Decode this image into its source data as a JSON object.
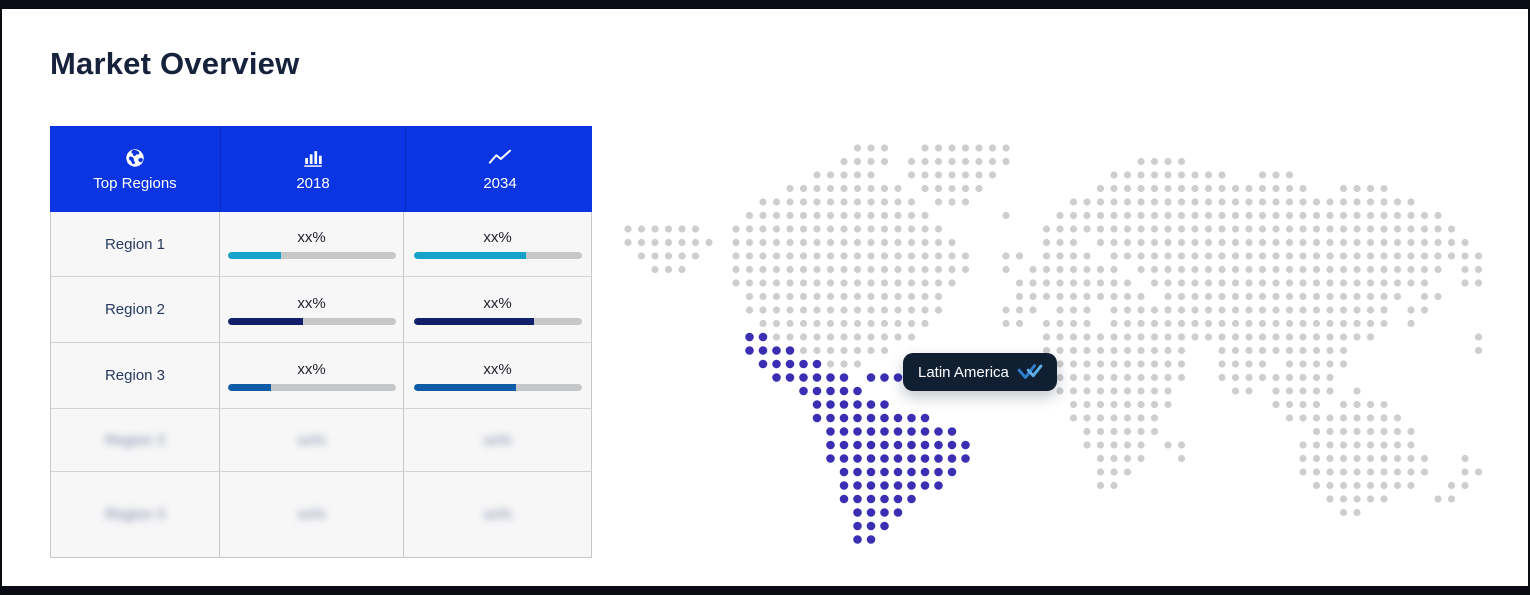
{
  "page": {
    "title": "Market Overview"
  },
  "table": {
    "columns": [
      {
        "label": "Top Regions",
        "icon": "globe-icon"
      },
      {
        "label": "2018",
        "icon": "bar-chart-icon"
      },
      {
        "label": "2034",
        "icon": "trend-up-icon"
      }
    ],
    "rows": [
      {
        "region": "Region 1",
        "blurred": false,
        "v2018": "xx%",
        "v2034": "xx%",
        "pct2018": 32,
        "pct2034": 67,
        "bar_color": "#17a2cb"
      },
      {
        "region": "Region 2",
        "blurred": false,
        "v2018": "xx%",
        "v2034": "xx%",
        "pct2018": 45,
        "pct2034": 72,
        "bar_color": "#121f6b"
      },
      {
        "region": "Region 3",
        "blurred": false,
        "v2018": "xx%",
        "v2034": "xx%",
        "pct2018": 26,
        "pct2034": 61,
        "bar_color": "#0e5ba8"
      },
      {
        "region": "Region 3",
        "blurred": true,
        "v2018": "xx%",
        "v2034": "xx%",
        "pct2018": null,
        "pct2034": null,
        "bar_color": null
      },
      {
        "region": "Region 3",
        "blurred": true,
        "v2018": "xx%",
        "v2034": "xx%",
        "pct2018": null,
        "pct2034": null,
        "bar_color": null
      }
    ],
    "track_color": "#c6c7c9",
    "header_color": "#0b35e2"
  },
  "map": {
    "tooltip_label": "Latin America",
    "dot_color": "#cecece",
    "highlight_color": "#3b2eb3",
    "legend": {
      "empty": ".",
      "dot": "o",
      "highlight": "P"
    },
    "grid": [
      ".................ooo..ooooooo...................................",
      "................oooo.oooooooo.........oooo......................",
      "..............ooooo..ooooooo........ooooooooo..ooo..............",
      "............ooooooooo.ooooo........oooooooooooooooo..oooo.......",
      "..........oooooooooooo.ooo.......oooooooooooooooooooooooooo.....",
      ".........oooooooooooooo.....o...ooooooooooooooooooooooooooooo...",
      "oooooo..oooooooooooooooo.......ooooooooooooooooooooooooooooooo..",
      "ooooooo.ooooooooooooooooo......ooo.oooooooooooooooooooooooooooo.",
      ".ooooo..oooooooooooooooooo..oo.oooo.oooooooooooooooooooooooooooo",
      "..ooo...oooooooooooooooooo..o.ooooooo.ooooooooooooooooooooooo.oo",
      "........ooooooooooooooooo....ooooooooo.ooooooooooooooooooooo..oo",
      ".........ooooooooooooooo.....oooooooooo.oooooooooooooooooo.oo...",
      ".........ooooooooooooooo....ooo.ooo.ooooooooooooooooooooo.oo....",
      "..........ooooooooooooo.....oo.oooo.ooooooooooooooooooooo.o.....",
      ".........PPooooooooooo.........ooooooooooooooooooooooooo.......o",
      ".........PPPPooooooo...........ooooooooooo..oooooooooo.........o",
      "..........PPPPPooo.............ooooooooooo..oooo.ooooo..........",
      "...........PPPPPP.PPP...........oooooooooo..ooooooooo...........",
      ".............PPPPP..............ooooooooo....oo.ooooo.o.........",
      "..............PPPPPP.............oooooooo.......oooo.oooo.......",
      "..............PPPPPPPPP..........ooooooo.........ooooooooo......",
      "...............PPPPPPPPPP.........oooooo...........oooooooo.....",
      "...............PPPPPPPPPPP........ooooo.oo........ooooooooo.....",
      "...............PPPPPPPPPPP.........oooo..o........oooooooooo..o.",
      "................PPPPPPPPP..........ooo............oooooooooo..oo",
      "................PPPPPPPP...........oo..............oooooooo..oo.",
      "................PPPPPP..............................ooooo...oo..",
      ".................PPPP................................oo.........",
      ".................PPP............................................",
      ".................PP............................................."
    ]
  },
  "chart_data": {
    "type": "table",
    "title": "Market Overview",
    "categories": [
      "Region 1",
      "Region 2",
      "Region 3",
      "Region 3 (blurred)",
      "Region 3 (blurred)"
    ],
    "series": [
      {
        "name": "2018",
        "values": [
          "xx%",
          "xx%",
          "xx%",
          "xx%",
          "xx%"
        ],
        "bar_fill_pct": [
          32,
          45,
          26,
          null,
          null
        ]
      },
      {
        "name": "2034",
        "values": [
          "xx%",
          "xx%",
          "xx%",
          "xx%",
          "xx%"
        ],
        "bar_fill_pct": [
          67,
          72,
          61,
          null,
          null
        ]
      }
    ],
    "legend_position": "none",
    "map_highlight": "Latin America"
  }
}
